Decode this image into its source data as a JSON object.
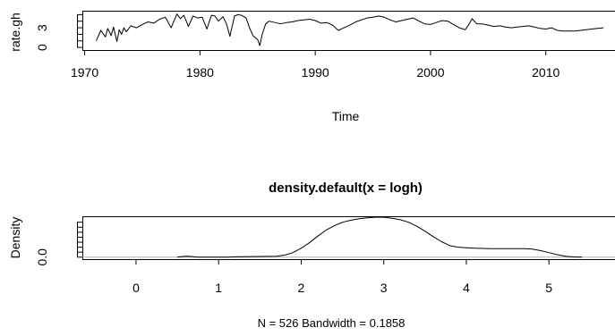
{
  "chart_data": [
    {
      "type": "line",
      "title": "",
      "xlabel": "Time",
      "ylabel": "rate.gh",
      "xlim": [
        1969.8,
        2016.0
      ],
      "ylim": [
        -0.4,
        5.6
      ],
      "xticks": [
        1970,
        1980,
        1990,
        2000,
        2010
      ],
      "yticks": [
        0,
        3
      ],
      "ytick_labels": [
        "0",
        "3"
      ],
      "minor_yticks": [
        1,
        2,
        4,
        5
      ],
      "x": [
        1971.0,
        1971.4,
        1971.8,
        1972.0,
        1972.3,
        1972.5,
        1972.8,
        1973.0,
        1973.2,
        1973.4,
        1973.6,
        1973.8,
        1974.0,
        1974.5,
        1975.0,
        1975.5,
        1976.0,
        1976.5,
        1977.0,
        1977.5,
        1978.0,
        1978.3,
        1978.6,
        1979.0,
        1979.4,
        1979.8,
        1980.2,
        1980.6,
        1981.0,
        1981.3,
        1981.6,
        1982.0,
        1982.3,
        1982.6,
        1983.0,
        1983.3,
        1983.6,
        1984.0,
        1984.3,
        1984.6,
        1985.0,
        1985.2,
        1985.4,
        1985.7,
        1986.0,
        1986.5,
        1987.0,
        1987.5,
        1988.0,
        1988.5,
        1989.0,
        1989.5,
        1990.0,
        1990.5,
        1991.0,
        1991.5,
        1992.0,
        1992.5,
        1993.0,
        1993.5,
        1994.0,
        1994.5,
        1995.0,
        1995.5,
        1996.0,
        1996.5,
        1997.0,
        1997.5,
        1998.0,
        1998.5,
        1999.0,
        1999.5,
        2000.0,
        2000.5,
        2001.0,
        2001.5,
        2002.0,
        2002.5,
        2003.0,
        2003.3,
        2003.6,
        2004.0,
        2004.5,
        2005.0,
        2005.5,
        2006.0,
        2006.5,
        2007.0,
        2007.5,
        2008.0,
        2008.5,
        2009.0,
        2009.5,
        2010.0,
        2010.5,
        2011.0,
        2011.5,
        2012.0,
        2012.5,
        2013.0,
        2013.5,
        2014.0,
        2014.5,
        2015.0
      ],
      "y": [
        1.0,
        2.6,
        1.6,
        2.9,
        1.8,
        3.1,
        0.9,
        2.7,
        2.0,
        3.0,
        2.4,
        2.8,
        3.3,
        3.0,
        3.5,
        3.9,
        3.7,
        4.3,
        4.6,
        3.0,
        5.1,
        4.4,
        4.9,
        3.2,
        4.8,
        4.5,
        4.6,
        2.8,
        4.9,
        4.8,
        4.0,
        4.7,
        3.6,
        1.7,
        4.8,
        5.0,
        4.9,
        4.5,
        3.0,
        1.8,
        1.2,
        0.3,
        2.0,
        3.6,
        4.0,
        3.8,
        3.6,
        3.8,
        3.9,
        4.1,
        4.2,
        4.3,
        4.1,
        3.7,
        3.8,
        3.4,
        2.6,
        3.0,
        3.4,
        3.9,
        4.2,
        4.5,
        4.6,
        4.8,
        4.6,
        4.2,
        3.9,
        4.1,
        4.3,
        4.5,
        4.0,
        3.6,
        3.5,
        3.8,
        4.1,
        4.0,
        3.5,
        3.0,
        2.7,
        3.4,
        4.4,
        3.6,
        3.6,
        3.4,
        3.2,
        3.3,
        3.1,
        3.0,
        3.1,
        3.2,
        3.3,
        3.1,
        2.9,
        2.8,
        3.0,
        2.6,
        2.5,
        2.5,
        2.5,
        2.6,
        2.7,
        2.8,
        2.9,
        3.0
      ],
      "grid": false,
      "legend": "none"
    },
    {
      "type": "line",
      "title": "density.default(x = logh)",
      "xlabel": "N = 526   Bandwidth = 0.1858",
      "ylabel": "Density",
      "xlim": [
        -0.65,
        5.8
      ],
      "ylim": [
        -0.04,
        0.82
      ],
      "xticks": [
        0,
        1,
        2,
        3,
        4,
        5
      ],
      "yticks": [
        0.0
      ],
      "ytick_labels": [
        "0.0"
      ],
      "minor_yticks": [
        0.1,
        0.2,
        0.3,
        0.4,
        0.5,
        0.6,
        0.7
      ],
      "x": [
        0.5,
        0.55,
        0.6,
        0.65,
        0.7,
        0.75,
        0.8,
        0.9,
        1.0,
        1.1,
        1.2,
        1.3,
        1.4,
        1.5,
        1.6,
        1.7,
        1.8,
        1.9,
        2.0,
        2.1,
        2.2,
        2.3,
        2.4,
        2.5,
        2.6,
        2.7,
        2.8,
        2.9,
        3.0,
        3.1,
        3.2,
        3.3,
        3.4,
        3.5,
        3.6,
        3.7,
        3.8,
        3.9,
        4.0,
        4.1,
        4.2,
        4.3,
        4.4,
        4.5,
        4.6,
        4.7,
        4.8,
        4.9,
        5.0,
        5.1,
        5.2,
        5.3,
        5.4
      ],
      "y": [
        0.0,
        0.012,
        0.018,
        0.015,
        0.008,
        0.002,
        0.0,
        0.0,
        0.0,
        0.0,
        0.006,
        0.01,
        0.012,
        0.014,
        0.016,
        0.02,
        0.04,
        0.09,
        0.18,
        0.29,
        0.42,
        0.54,
        0.63,
        0.7,
        0.74,
        0.77,
        0.79,
        0.8,
        0.8,
        0.78,
        0.75,
        0.7,
        0.62,
        0.52,
        0.41,
        0.31,
        0.23,
        0.2,
        0.19,
        0.18,
        0.175,
        0.17,
        0.17,
        0.17,
        0.17,
        0.17,
        0.16,
        0.13,
        0.09,
        0.05,
        0.02,
        0.005,
        0.0
      ],
      "baseline": 0,
      "grid": false,
      "legend": "none"
    }
  ]
}
